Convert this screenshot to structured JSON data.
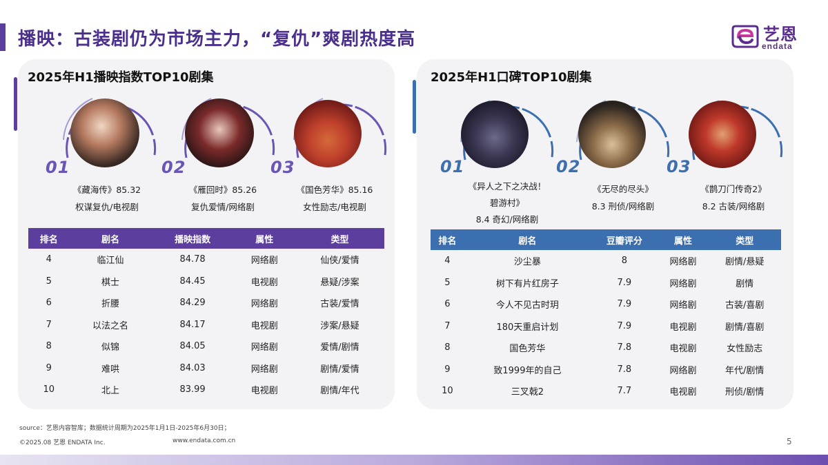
{
  "header": {
    "title": "播映：古装剧仍为市场主力，“复仇”爽剧热度高",
    "logo_cn": "艺恩",
    "logo_en": "endata"
  },
  "colors": {
    "purple": "#5b3e9e",
    "blue": "#3c6fb0",
    "rank_purple": "#6a55b5",
    "rank_blue": "#3c6fb0"
  },
  "left": {
    "section_title": "2025年H1播映指数TOP10剧集",
    "top3": [
      {
        "rank": "01",
        "line1": "《藏海传》85.32",
        "line2": "权谋复仇/电视剧"
      },
      {
        "rank": "02",
        "line1": "《雁回时》85.26",
        "line2": "复仇爱情/网络剧"
      },
      {
        "rank": "03",
        "line1": "《国色芳华》85.16",
        "line2": "女性励志/电视剧"
      }
    ],
    "table": {
      "headers": [
        "排名",
        "剧名",
        "播映指数",
        "属性",
        "类型"
      ],
      "rows": [
        [
          "4",
          "临江仙",
          "84.78",
          "网络剧",
          "仙侠/爱情"
        ],
        [
          "5",
          "棋士",
          "84.45",
          "电视剧",
          "悬疑/涉案"
        ],
        [
          "6",
          "折腰",
          "84.29",
          "网络剧",
          "古装/爱情"
        ],
        [
          "7",
          "以法之名",
          "84.17",
          "电视剧",
          "涉案/悬疑"
        ],
        [
          "8",
          "似锦",
          "84.05",
          "网络剧",
          "爱情/剧情"
        ],
        [
          "9",
          "难哄",
          "84.03",
          "网络剧",
          "剧情/爱情"
        ],
        [
          "10",
          "北上",
          "83.99",
          "电视剧",
          "剧情/年代"
        ]
      ]
    }
  },
  "right": {
    "section_title": "2025年H1口碑TOP10剧集",
    "top3": [
      {
        "rank": "01",
        "line1": "《异人之下之决战！",
        "line2": "碧游村》",
        "line3": "8.4 奇幻/网络剧"
      },
      {
        "rank": "02",
        "line1": "《无尽的尽头》",
        "line2": "8.3 刑侦/网络剧"
      },
      {
        "rank": "03",
        "line1": "《鹊刀门传奇2》",
        "line2": "8.2 古装/网络剧"
      }
    ],
    "table": {
      "headers": [
        "排名",
        "剧名",
        "豆瓣评分",
        "属性",
        "类型"
      ],
      "rows": [
        [
          "4",
          "沙尘暴",
          "8",
          "网络剧",
          "剧情/悬疑"
        ],
        [
          "5",
          "树下有片红房子",
          "7.9",
          "网络剧",
          "剧情"
        ],
        [
          "6",
          "今人不见古时玥",
          "7.9",
          "网络剧",
          "古装/喜剧"
        ],
        [
          "7",
          "180天重启计划",
          "7.9",
          "电视剧",
          "剧情/喜剧"
        ],
        [
          "8",
          "国色芳华",
          "7.8",
          "电视剧",
          "女性励志"
        ],
        [
          "9",
          "致1999年的自己",
          "7.8",
          "网络剧",
          "年代/剧情"
        ],
        [
          "10",
          "三叉戟2",
          "7.7",
          "电视剧",
          "刑侦/剧情"
        ]
      ]
    }
  },
  "footer": {
    "source": "source：艺恩内容智库；数据统计周期为2025年1月1日-2025年6月30日；",
    "copyright": "©2025.08 艺恩 ENDATA Inc.",
    "url": "www.endata.com.cn",
    "page": "5"
  }
}
